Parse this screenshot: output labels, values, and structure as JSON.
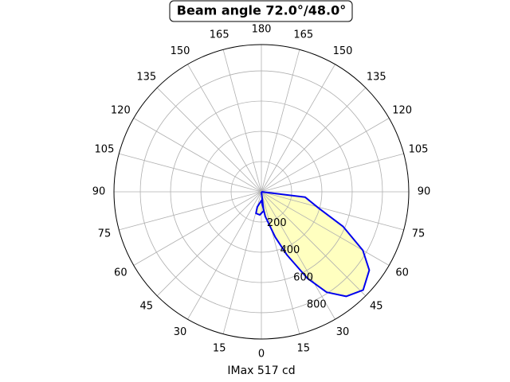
{
  "chart_data": {
    "type": "polar",
    "title": "Beam angle 72.0°/48.0°",
    "xlabel": "IMax 517 cd",
    "rlim": [
      0,
      974
    ],
    "rticks": [
      200,
      400,
      600,
      800
    ],
    "thetaticks": [
      0,
      15,
      30,
      45,
      60,
      75,
      90,
      105,
      120,
      135,
      150,
      165,
      180,
      {
        "value": 195,
        "label": "165"
      },
      {
        "value": 210,
        "label": "150"
      },
      {
        "value": 225,
        "label": "135"
      },
      {
        "value": 240,
        "label": "120"
      },
      {
        "value": 255,
        "label": "105"
      },
      {
        "value": 270,
        "label": "90"
      },
      {
        "value": 285,
        "label": "75"
      },
      {
        "value": 300,
        "label": "60"
      },
      {
        "value": 315,
        "label": "45"
      },
      {
        "value": 330,
        "label": "30"
      },
      {
        "value": 345,
        "label": "15"
      }
    ],
    "grid": true,
    "series": [
      {
        "color": "#0000ee",
        "fill": "#ffffc0",
        "theta": [
          90,
          83,
          74,
          67,
          60,
          54,
          46,
          39,
          33,
          28,
          22,
          17,
          9,
          0,
          345,
          346,
          356,
          7,
          90
        ],
        "r": [
          0,
          292,
          395,
          585,
          774,
          881,
          935,
          890,
          792,
          648,
          449,
          313,
          165,
          58,
          103,
          147,
          153,
          127,
          0
        ]
      }
    ]
  }
}
